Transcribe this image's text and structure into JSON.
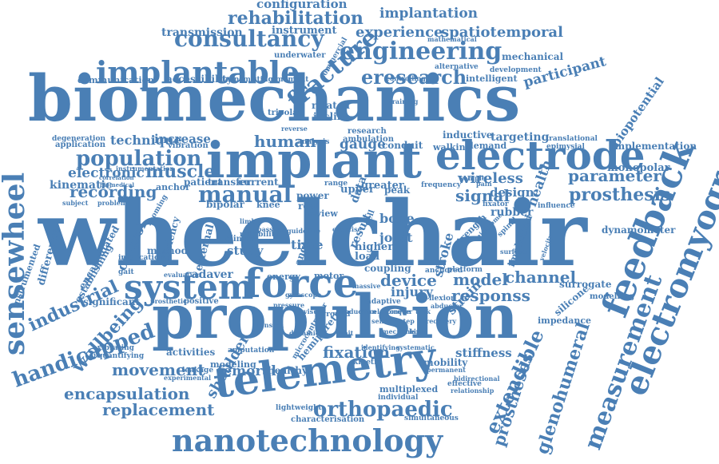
{
  "palette": {
    "word_color": "#4a7fb5",
    "background": "#ffffff"
  },
  "words": [
    "wheelchair",
    "biomechanics",
    "propulsion",
    "implant",
    "telemetry",
    "electrode",
    "force",
    "system",
    "feedback",
    "electromyography",
    "nanotechnology",
    "sensewheel",
    "implantable",
    "engineering",
    "fracture",
    "consultancy",
    "population",
    "manual",
    "measurement",
    "orthopaedic",
    "handicapped",
    "eresearch",
    "rehabilitation",
    "glenohumeral",
    "extendible",
    "prosthesis",
    "encapsulation",
    "prostheses",
    "parameter",
    "industrial",
    "wellbeing",
    "movement",
    "replacement",
    "muscle",
    "recording",
    "human",
    "spatiotemporal",
    "experience",
    "implantation",
    "configuration",
    "transmission",
    "instrument",
    "participant",
    "biopotential",
    "channel",
    "model",
    "device",
    "responss",
    "fixation",
    "femoral",
    "shoulder",
    "technique",
    "electronic",
    "kinematic",
    "increase",
    "gauge",
    "wireless",
    "signal",
    "design",
    "health",
    "stiffness",
    "activities",
    "control",
    "difference",
    "cadaver",
    "efficiency",
    "external",
    "study",
    "time",
    "joint",
    "bone",
    "injury",
    "strain",
    "result",
    "data",
    "stroke",
    "implanted",
    "dynamometer",
    "monopolar",
    "implementation",
    "modelling",
    "surrogate",
    "silicone",
    "impedance",
    "mechanical",
    "intelligent",
    "development",
    "alternative",
    "underwater",
    "communication",
    "accessibility",
    "transmitting moment",
    "mathematical",
    "related",
    "incline",
    "tripolar",
    "research",
    "conduit",
    "walking",
    "demand",
    "inductive",
    "targeting",
    "translational",
    "epimysial",
    "rubber",
    "influence",
    "anchor",
    "patient",
    "transfer",
    "current",
    "power",
    "real",
    "bipolar",
    "method",
    "vibration",
    "application",
    "degeneration",
    "healthy",
    "modeling",
    "leakage",
    "hemiparetic",
    "kinetic",
    "mobility",
    "effective",
    "relationship",
    "multiplexed",
    "individual",
    "simultaneous",
    "characterisation",
    "lightweight",
    "experimental",
    "microcontroller",
    "platform",
    "anchored",
    "coupling",
    "motor",
    "energy",
    "angle",
    "load",
    "higher",
    "user",
    "peak",
    "greater",
    "upper",
    "gait",
    "vibrating",
    "quantifying",
    "establishing",
    "significant",
    "encapsulated",
    "instrumented",
    "implication",
    "instrumentation",
    "positive",
    "evaluation",
    "prosthetic",
    "velocity",
    "permanent",
    "bidirectional",
    "identifying",
    "systematic",
    "commercial",
    "controlling",
    "analysis",
    "ambulation",
    "clinical",
    "knee",
    "review",
    "fixator",
    "pain",
    "sample",
    "frequency",
    "cell",
    "strength",
    "spinal",
    "training",
    "flexion",
    "abductor",
    "subject",
    "problem",
    "biomedical",
    "correlation",
    "zooming",
    "amputation",
    "adaptive",
    "massive",
    "nichrome",
    "surface",
    "reverse",
    "ground",
    "reliability",
    "guideline",
    "exercise",
    "range",
    "visual",
    "passive",
    "dynamic",
    "unit",
    "mechanism",
    "induction",
    "gyroscope",
    "tension",
    "hip",
    "pressure",
    "accelerometer",
    "torque",
    "task",
    "step",
    "sensor",
    "recovery",
    "limb",
    "wheel",
    "push",
    "rim"
  ]
}
